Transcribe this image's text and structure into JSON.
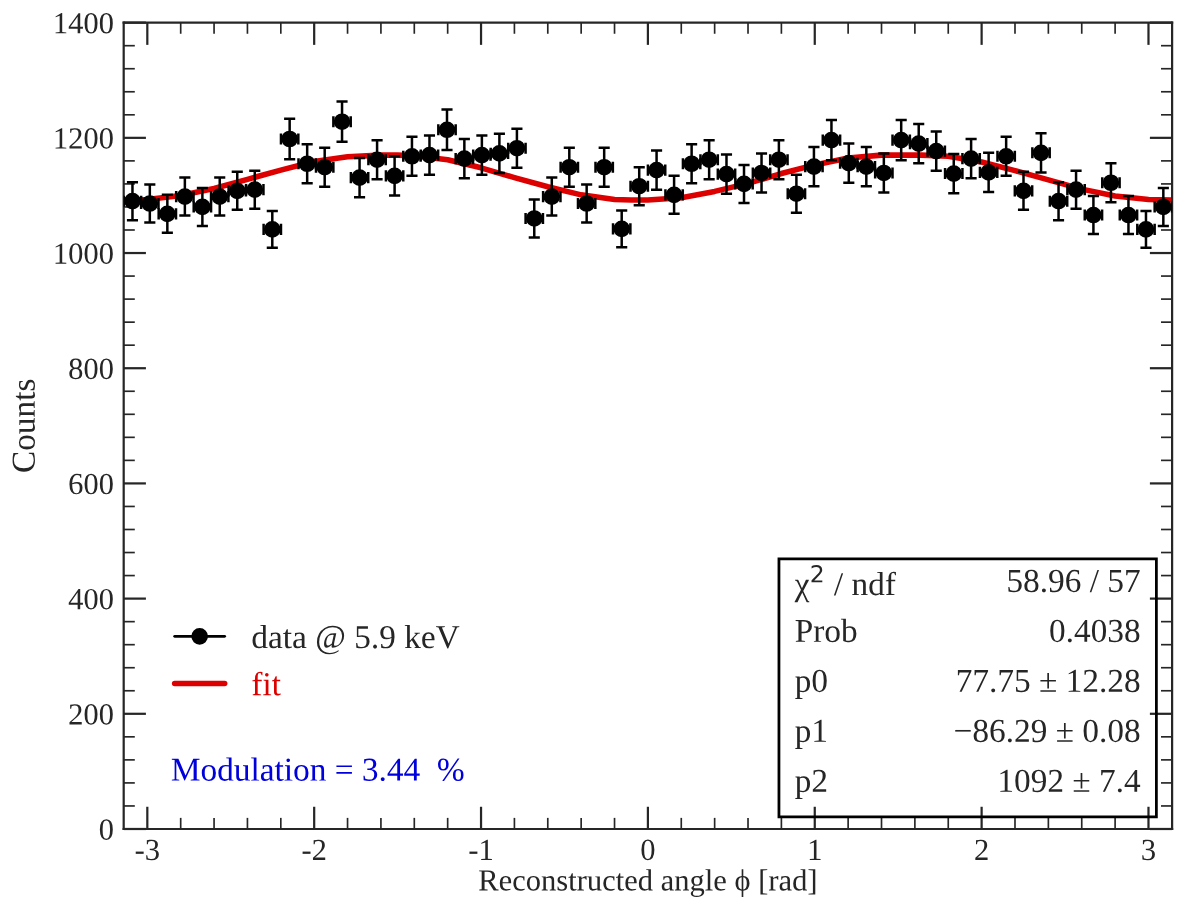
{
  "chart_data": {
    "type": "scatter",
    "xlabel": "Reconstructed angle ϕ [rad]",
    "ylabel": "Counts",
    "xlim": [
      -3.1416,
      3.1416
    ],
    "xticks": [
      -3,
      -2,
      -1,
      0,
      1,
      2,
      3
    ],
    "ylim": [
      0,
      1400
    ],
    "yticks": [
      0,
      200,
      400,
      600,
      800,
      1000,
      1200,
      1400
    ],
    "grid": false,
    "legend": "bottom left",
    "annotations": [
      "Modulation = 3.44  %",
      "χ$^{2}$ / ndf",
      "58.96 / 57",
      "Prob",
      "0.4038",
      "p0",
      "77.75 ± 12.28",
      "p1",
      "−86.29 ± 0.08",
      "p2",
      "1092 ± 7.4"
    ],
    "series": [
      {
        "name": "data @ 5.9 keV",
        "marker": "circle",
        "color": "#000000",
        "x": [
          -3.089,
          -2.985,
          -2.88,
          -2.775,
          -2.67,
          -2.566,
          -2.461,
          -2.356,
          -2.251,
          -2.147,
          -2.042,
          -1.937,
          -1.833,
          -1.728,
          -1.623,
          -1.518,
          -1.414,
          -1.309,
          -1.204,
          -1.1,
          -0.995,
          -0.89,
          -0.785,
          -0.681,
          -0.576,
          -0.471,
          -0.367,
          -0.262,
          -0.157,
          -0.052,
          0.052,
          0.157,
          0.262,
          0.367,
          0.471,
          0.576,
          0.681,
          0.785,
          0.89,
          0.995,
          1.1,
          1.204,
          1.309,
          1.414,
          1.518,
          1.623,
          1.728,
          1.833,
          1.937,
          2.042,
          2.147,
          2.251,
          2.356,
          2.461,
          2.566,
          2.67,
          2.775,
          2.88,
          2.985,
          3.089
        ],
        "values": [
          1090,
          1086,
          1068,
          1098,
          1080,
          1098,
          1108,
          1110,
          1041,
          1198,
          1155,
          1149,
          1228,
          1131,
          1162,
          1134,
          1168,
          1170,
          1214,
          1164,
          1170,
          1173,
          1182,
          1060,
          1098,
          1149,
          1086,
          1149,
          1042,
          1116,
          1144,
          1101,
          1155,
          1162,
          1137,
          1120,
          1139,
          1162,
          1103,
          1150,
          1196,
          1156,
          1150,
          1139,
          1196,
          1190,
          1177,
          1138,
          1164,
          1140,
          1168,
          1108,
          1174,
          1090,
          1110,
          1066,
          1122,
          1066,
          1041,
          1080
        ],
        "errors": [
          33,
          33,
          33,
          33,
          33,
          33,
          33,
          33,
          32,
          35,
          34,
          34,
          35,
          34,
          34,
          34,
          34,
          34,
          35,
          34,
          34,
          34,
          34,
          33,
          33,
          34,
          33,
          34,
          32,
          33,
          34,
          33,
          34,
          34,
          34,
          33,
          34,
          34,
          33,
          34,
          35,
          34,
          34,
          34,
          35,
          34,
          34,
          34,
          34,
          34,
          34,
          33,
          34,
          33,
          33,
          33,
          34,
          33,
          32,
          33
        ],
        "xerrors": [
          0.052,
          0.052,
          0.052,
          0.052,
          0.052,
          0.052,
          0.052,
          0.052,
          0.052,
          0.052,
          0.052,
          0.052,
          0.052,
          0.052,
          0.052,
          0.052,
          0.052,
          0.052,
          0.052,
          0.052,
          0.052,
          0.052,
          0.052,
          0.052,
          0.052,
          0.052,
          0.052,
          0.052,
          0.052,
          0.052,
          0.052,
          0.052,
          0.052,
          0.052,
          0.052,
          0.052,
          0.052,
          0.052,
          0.052,
          0.052,
          0.052,
          0.052,
          0.052,
          0.052,
          0.052,
          0.052,
          0.052,
          0.052,
          0.052,
          0.052,
          0.052,
          0.052,
          0.052,
          0.052,
          0.052,
          0.052,
          0.052,
          0.052,
          0.052,
          0.052
        ]
      },
      {
        "name": "fit",
        "type": "line",
        "color": "#dd0000",
        "x": [
          -3.1416,
          -3.0,
          -2.8,
          -2.6,
          -2.4,
          -2.2,
          -2.0,
          -1.8,
          -1.6,
          -1.5,
          -1.4,
          -1.2,
          -1.0,
          -0.8,
          -0.6,
          -0.4,
          -0.2,
          -0.1,
          0.0,
          0.2,
          0.4,
          0.6,
          0.8,
          1.0,
          1.2,
          1.4,
          1.5,
          1.64,
          1.8,
          2.0,
          2.2,
          2.4,
          2.6,
          2.8,
          3.0,
          3.1416
        ],
        "values": [
          1092,
          1093,
          1100,
          1112,
          1128,
          1144,
          1159,
          1167,
          1170,
          1170,
          1169,
          1162,
          1148,
          1131,
          1115,
          1101,
          1093,
          1092,
          1092,
          1096,
          1107,
          1121,
          1138,
          1153,
          1165,
          1170,
          1170,
          1170,
          1168,
          1158,
          1143,
          1127,
          1111,
          1099,
          1093,
          1092
        ]
      }
    ]
  }
}
